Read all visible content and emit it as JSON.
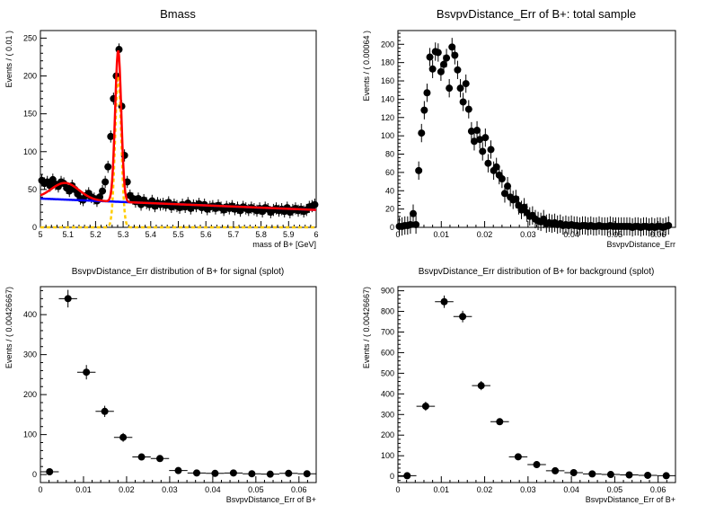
{
  "chart_data": [
    {
      "type": "scatter",
      "title": "Bmass",
      "xlabel": "mass of B+ [GeV]",
      "ylabel": "Events / ( 0.01 )",
      "xlim": [
        5.0,
        6.0
      ],
      "ylim": [
        0,
        260
      ],
      "xticks": [
        "5",
        "5.1",
        "5.2",
        "5.3",
        "5.4",
        "5.5",
        "5.6",
        "5.7",
        "5.8",
        "5.9",
        "6"
      ],
      "yticks": [
        "0",
        "50",
        "100",
        "150",
        "200",
        "250"
      ],
      "series": [
        {
          "kind": "points",
          "x": [
            5.005,
            5.015,
            5.025,
            5.035,
            5.045,
            5.055,
            5.065,
            5.075,
            5.085,
            5.095,
            5.105,
            5.115,
            5.125,
            5.135,
            5.145,
            5.155,
            5.165,
            5.175,
            5.185,
            5.195,
            5.205,
            5.215,
            5.225,
            5.235,
            5.245,
            5.255,
            5.265,
            5.275,
            5.285,
            5.295,
            5.305,
            5.315,
            5.325,
            5.335,
            5.345,
            5.355,
            5.365,
            5.375,
            5.385,
            5.395,
            5.405,
            5.415,
            5.425,
            5.435,
            5.445,
            5.455,
            5.465,
            5.475,
            5.485,
            5.495,
            5.505,
            5.515,
            5.525,
            5.535,
            5.545,
            5.555,
            5.565,
            5.575,
            5.585,
            5.595,
            5.605,
            5.615,
            5.625,
            5.635,
            5.645,
            5.655,
            5.665,
            5.675,
            5.685,
            5.695,
            5.705,
            5.715,
            5.725,
            5.735,
            5.745,
            5.755,
            5.765,
            5.775,
            5.785,
            5.795,
            5.805,
            5.815,
            5.825,
            5.835,
            5.845,
            5.855,
            5.865,
            5.875,
            5.885,
            5.895,
            5.905,
            5.915,
            5.925,
            5.935,
            5.945,
            5.955,
            5.965,
            5.975,
            5.985,
            5.995
          ],
          "y": [
            62,
            58,
            60,
            55,
            63,
            57,
            54,
            60,
            58,
            52,
            48,
            55,
            50,
            44,
            38,
            36,
            42,
            45,
            40,
            38,
            35,
            40,
            48,
            60,
            80,
            120,
            170,
            200,
            235,
            160,
            95,
            60,
            42,
            38,
            34,
            38,
            30,
            36,
            32,
            30,
            35,
            28,
            32,
            30,
            31,
            29,
            33,
            27,
            30,
            28,
            26,
            30,
            27,
            32,
            25,
            29,
            28,
            31,
            26,
            30,
            24,
            27,
            28,
            25,
            29,
            26,
            23,
            27,
            25,
            28,
            24,
            26,
            22,
            27,
            25,
            23,
            26,
            24,
            22,
            25,
            21,
            26,
            24,
            20,
            23,
            25,
            22,
            24,
            21,
            26,
            20,
            23,
            25,
            22,
            24,
            21,
            23,
            27,
            28,
            30
          ],
          "yerr": 8,
          "color": "#000000"
        },
        {
          "name": "",
          "kind": "curve",
          "role": "total",
          "color": "#ff0000",
          "params": {
            "bkg_a": 38,
            "bkg_b": -15,
            "mu": 5.282,
            "sigma": 0.011,
            "amp": 200,
            "bump_x": 5.09,
            "bump_w": 0.05,
            "bump_amp": 22
          }
        },
        {
          "name": "",
          "kind": "curve",
          "role": "signal",
          "color": "#ffcc00",
          "style": "dashed"
        },
        {
          "name": "",
          "kind": "curve",
          "role": "background",
          "color": "#0000ff"
        }
      ]
    },
    {
      "type": "scatter",
      "title": "BsvpvDistance_Err of B+: total sample",
      "xlabel": "BsvpvDistance_Err",
      "ylabel": "Events / ( 0.00064 )",
      "xlim": [
        0,
        0.064
      ],
      "ylim": [
        0,
        215
      ],
      "xticks": [
        "0",
        "0.01",
        "0.02",
        "0.03",
        "0.04",
        "0.05",
        "0.06"
      ],
      "yticks": [
        "0",
        "20",
        "40",
        "60",
        "80",
        "100",
        "120",
        "140",
        "160",
        "180",
        "200"
      ],
      "series": [
        {
          "kind": "points",
          "x": [
            0.00032,
            0.00096,
            0.0016,
            0.00224,
            0.00288,
            0.00352,
            0.00416,
            0.0048,
            0.00544,
            0.00608,
            0.00672,
            0.00736,
            0.008,
            0.00864,
            0.00928,
            0.00992,
            0.01056,
            0.0112,
            0.01184,
            0.01248,
            0.01312,
            0.01376,
            0.0144,
            0.01504,
            0.01568,
            0.01632,
            0.01696,
            0.0176,
            0.01824,
            0.01888,
            0.01952,
            0.02016,
            0.0208,
            0.02144,
            0.02208,
            0.02272,
            0.02336,
            0.024,
            0.02464,
            0.02528,
            0.02592,
            0.02656,
            0.0272,
            0.02784,
            0.02848,
            0.02912,
            0.02976,
            0.0304,
            0.03104,
            0.03168,
            0.03232,
            0.03296,
            0.0336,
            0.03424,
            0.03488,
            0.03552,
            0.03616,
            0.0368,
            0.03744,
            0.03808,
            0.03872,
            0.03936,
            0.04,
            0.04064,
            0.04128,
            0.04192,
            0.04256,
            0.0432,
            0.04384,
            0.04448,
            0.04512,
            0.04576,
            0.0464,
            0.04704,
            0.04768,
            0.04832,
            0.04896,
            0.0496,
            0.05024,
            0.05088,
            0.05152,
            0.05216,
            0.0528,
            0.05344,
            0.05408,
            0.05472,
            0.05536,
            0.056,
            0.05664,
            0.05728,
            0.05792,
            0.05856,
            0.0592,
            0.05984,
            0.06048,
            0.06112,
            0.06176,
            0.0624
          ],
          "y": [
            1,
            1,
            2,
            2,
            3,
            15,
            3,
            62,
            103,
            128,
            147,
            186,
            173,
            192,
            191,
            170,
            178,
            185,
            152,
            197,
            188,
            172,
            152,
            137,
            157,
            129,
            105,
            94,
            106,
            96,
            83,
            98,
            70,
            85,
            62,
            66,
            57,
            53,
            37,
            45,
            33,
            30,
            31,
            24,
            19,
            22,
            16,
            12,
            13,
            9,
            7,
            6,
            9,
            4,
            5,
            4,
            5,
            3,
            4,
            2,
            3,
            2,
            3,
            2,
            2,
            1,
            2,
            2,
            1,
            2,
            1,
            1,
            2,
            1,
            1,
            1,
            2,
            1,
            1,
            1,
            1,
            1,
            1,
            1,
            0,
            1,
            1,
            0,
            1,
            1,
            0,
            1,
            0,
            1,
            1,
            0,
            1,
            2
          ],
          "yerr": 10,
          "color": "#000000"
        }
      ]
    },
    {
      "type": "scatter",
      "title": "BsvpvDistance_Err distribution of B+ for signal (splot)",
      "xlabel": "BsvpvDistance_Err of B+",
      "ylabel": "Events / ( 0.00426667)",
      "xlim": [
        0,
        0.064
      ],
      "ylim": [
        -20,
        470
      ],
      "xticks": [
        "0",
        "0.01",
        "0.02",
        "0.03",
        "0.04",
        "0.05",
        "0.06"
      ],
      "yticks": [
        "0",
        "100",
        "200",
        "300",
        "400"
      ],
      "series": [
        {
          "kind": "points",
          "x": [
            0.00213,
            0.0064,
            0.01067,
            0.01493,
            0.0192,
            0.02347,
            0.02773,
            0.032,
            0.03627,
            0.04053,
            0.0448,
            0.04907,
            0.05333,
            0.0576,
            0.06187
          ],
          "y": [
            7,
            440,
            256,
            158,
            93,
            44,
            40,
            10,
            4,
            3,
            4,
            2,
            1,
            3,
            2
          ],
          "yerr": [
            6,
            22,
            18,
            14,
            11,
            7,
            6,
            4,
            3,
            3,
            3,
            2,
            2,
            2,
            2
          ],
          "xerr": 0.00213,
          "color": "#000000"
        }
      ]
    },
    {
      "type": "scatter",
      "title": "BsvpvDistance_Err distribution of B+ for background (splot)",
      "xlabel": "BsvpvDistance_Err of B+",
      "ylabel": "Events / ( 0.00426667)",
      "xlim": [
        0,
        0.064
      ],
      "ylim": [
        -30,
        920
      ],
      "xticks": [
        "0",
        "0.01",
        "0.02",
        "0.03",
        "0.04",
        "0.05",
        "0.06"
      ],
      "yticks": [
        "0",
        "100",
        "200",
        "300",
        "400",
        "500",
        "600",
        "700",
        "800",
        "900"
      ],
      "series": [
        {
          "kind": "points",
          "x": [
            0.00213,
            0.0064,
            0.01067,
            0.01493,
            0.0192,
            0.02347,
            0.02773,
            0.032,
            0.03627,
            0.04053,
            0.0448,
            0.04907,
            0.05333,
            0.0576,
            0.06187
          ],
          "y": [
            3,
            340,
            847,
            775,
            440,
            265,
            95,
            57,
            27,
            18,
            12,
            9,
            7,
            5,
            3
          ],
          "yerr": [
            4,
            22,
            30,
            28,
            22,
            14,
            10,
            8,
            6,
            5,
            4,
            3,
            3,
            2,
            2
          ],
          "xerr": 0.00213,
          "color": "#000000"
        }
      ]
    }
  ]
}
